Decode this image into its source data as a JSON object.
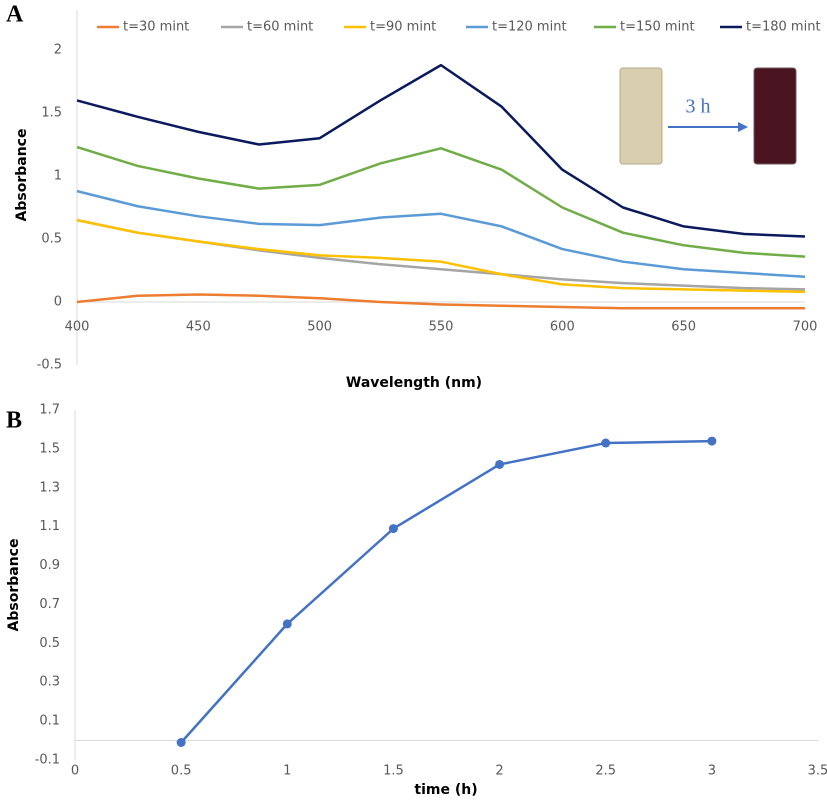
{
  "chart_data": [
    {
      "type": "line",
      "label": "A",
      "ylabel": "Absorbance",
      "xlabel": "Wavelength (nm)",
      "annotation": "3 h",
      "legend": "top",
      "x": [
        400,
        425,
        450,
        475,
        500,
        525,
        550,
        575,
        600,
        625,
        650,
        675,
        700
      ],
      "xlim": [
        400,
        700
      ],
      "xticks": [
        400,
        450,
        500,
        550,
        600,
        650,
        700
      ],
      "ylim": [
        -0.5,
        2
      ],
      "yticks": [
        -0.5,
        0,
        0.5,
        1,
        1.5,
        2
      ],
      "series": [
        {
          "name": "t=30 mint",
          "color": "#ed7d31",
          "values": [
            0,
            0.05,
            0.06,
            0.05,
            0.03,
            0,
            -0.02,
            -0.03,
            -0.04,
            -0.05,
            -0.05,
            -0.05,
            -0.05
          ]
        },
        {
          "name": "t=60 mint",
          "color": "#a5a5a5",
          "values": [
            0.65,
            0.55,
            0.48,
            0.41,
            0.35,
            0.3,
            0.26,
            0.22,
            0.18,
            0.15,
            0.13,
            0.11,
            0.1
          ]
        },
        {
          "name": "t=90 mint",
          "color": "#ffc000",
          "values": [
            0.65,
            0.55,
            0.48,
            0.42,
            0.37,
            0.35,
            0.32,
            0.22,
            0.14,
            0.11,
            0.1,
            0.09,
            0.08
          ]
        },
        {
          "name": "t=120 mint",
          "color": "#5b9bd5",
          "values": [
            0.88,
            0.76,
            0.68,
            0.62,
            0.61,
            0.67,
            0.7,
            0.6,
            0.42,
            0.32,
            0.26,
            0.23,
            0.2
          ]
        },
        {
          "name": "t=150 mint",
          "color": "#70ad47",
          "values": [
            1.23,
            1.08,
            0.98,
            0.9,
            0.93,
            1.1,
            1.22,
            1.05,
            0.75,
            0.55,
            0.45,
            0.39,
            0.36
          ]
        },
        {
          "name": "t=180 mint",
          "color": "#0a1a5c",
          "values": [
            1.6,
            1.47,
            1.35,
            1.25,
            1.3,
            1.6,
            1.88,
            1.55,
            1.05,
            0.75,
            0.6,
            0.54,
            0.52
          ]
        }
      ]
    },
    {
      "type": "line",
      "label": "B",
      "ylabel": "Absorbance",
      "xlabel": "time (h)",
      "markers": true,
      "x": [
        0.5,
        1,
        1.5,
        2,
        2.5,
        3
      ],
      "xlim": [
        0,
        3.5
      ],
      "xticks": [
        0,
        0.5,
        1,
        1.5,
        2,
        2.5,
        3,
        3.5
      ],
      "ylim": [
        -0.1,
        1.7
      ],
      "yticks": [
        -0.1,
        0.1,
        0.3,
        0.5,
        0.7,
        0.9,
        1.1,
        1.3,
        1.5,
        1.7
      ],
      "series": [
        {
          "color": "#4472c4",
          "values": [
            -0.01,
            0.6,
            1.09,
            1.42,
            1.53,
            1.54
          ]
        }
      ]
    }
  ]
}
